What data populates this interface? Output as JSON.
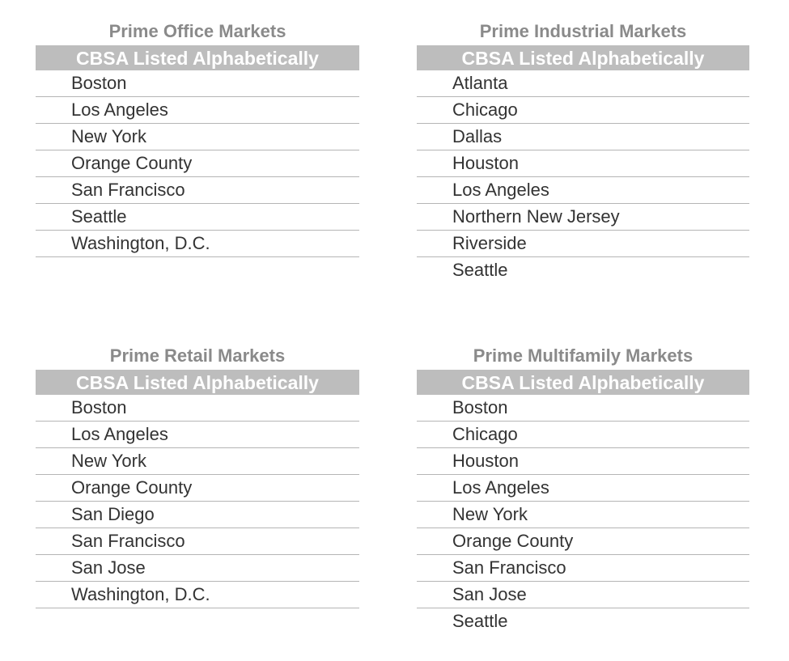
{
  "panels": [
    {
      "title": "Prime Office Markets",
      "header": "CBSA Listed Alphabetically",
      "items": [
        "Boston",
        "Los Angeles",
        "New York",
        "Orange County",
        "San Francisco",
        "Seattle",
        "Washington, D.C."
      ]
    },
    {
      "title": "Prime Industrial Markets",
      "header": "CBSA Listed Alphabetically",
      "items": [
        "Atlanta",
        "Chicago",
        "Dallas",
        "Houston",
        "Los Angeles",
        "Northern New Jersey",
        "Riverside",
        "Seattle"
      ]
    },
    {
      "title": "Prime Retail Markets",
      "header": "CBSA Listed Alphabetically",
      "items": [
        "Boston",
        "Los Angeles",
        "New York",
        "Orange County",
        "San Diego",
        "San Francisco",
        "San Jose",
        "Washington, D.C."
      ]
    },
    {
      "title": "Prime Multifamily Markets",
      "header": "CBSA Listed Alphabetically",
      "items": [
        "Boston",
        "Chicago",
        "Houston",
        "Los Angeles",
        "New York",
        "Orange County",
        "San Francisco",
        "San Jose",
        "Seattle"
      ]
    }
  ]
}
